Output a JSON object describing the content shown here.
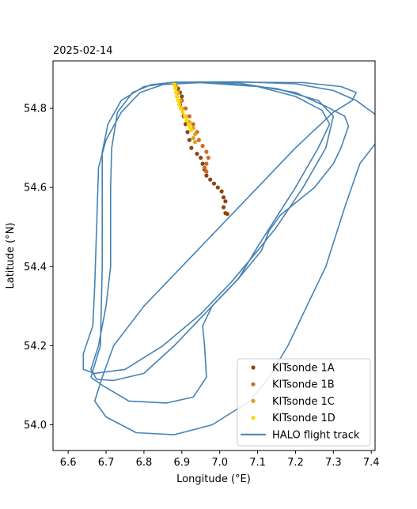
{
  "chart_data": {
    "type": "scatter",
    "title": "2025-02-14",
    "xlabel": "Longitude (°E)",
    "ylabel": "Latitude (°N)",
    "xlim": [
      6.56,
      7.41
    ],
    "ylim": [
      53.935,
      54.92
    ],
    "xticks": [
      6.6,
      6.7,
      6.8,
      6.9,
      7.0,
      7.1,
      7.2,
      7.3,
      7.4
    ],
    "xtick_labels": [
      "6.6",
      "6.7",
      "6.8",
      "6.9",
      "7.0",
      "7.1",
      "7.2",
      "7.3",
      "7.4"
    ],
    "yticks": [
      54.0,
      54.2,
      54.4,
      54.6,
      54.8
    ],
    "ytick_labels": [
      "54.0",
      "54.2",
      "54.4",
      "54.6",
      "54.8"
    ],
    "grid": false,
    "legend": "lower-right",
    "series": [
      {
        "name": "KITsonde 1A",
        "kind": "points",
        "color": "#8b4513",
        "points": [
          [
            6.88,
            54.86
          ],
          [
            6.89,
            54.85
          ],
          [
            6.895,
            54.84
          ],
          [
            6.9,
            54.83
          ],
          [
            6.9,
            54.82
          ],
          [
            6.895,
            54.81
          ],
          [
            6.9,
            54.8
          ],
          [
            6.905,
            54.78
          ],
          [
            6.91,
            54.76
          ],
          [
            6.915,
            54.74
          ],
          [
            6.92,
            54.72
          ],
          [
            6.925,
            54.7
          ],
          [
            6.94,
            54.685
          ],
          [
            6.95,
            54.675
          ],
          [
            6.955,
            54.66
          ],
          [
            6.96,
            54.645
          ],
          [
            6.965,
            54.63
          ],
          [
            6.975,
            54.62
          ],
          [
            6.985,
            54.61
          ],
          [
            6.995,
            54.6
          ],
          [
            7.005,
            54.59
          ],
          [
            7.01,
            54.575
          ],
          [
            7.015,
            54.565
          ],
          [
            7.01,
            54.55
          ],
          [
            7.015,
            54.535
          ],
          [
            7.02,
            54.533
          ]
        ]
      },
      {
        "name": "KITsonde 1B",
        "kind": "points",
        "color": "#d2691e",
        "points": [
          [
            6.885,
            54.855
          ],
          [
            6.89,
            54.84
          ],
          [
            6.9,
            54.82
          ],
          [
            6.91,
            54.8
          ],
          [
            6.92,
            54.78
          ],
          [
            6.93,
            54.76
          ],
          [
            6.94,
            54.74
          ],
          [
            6.945,
            54.72
          ],
          [
            6.955,
            54.705
          ],
          [
            6.965,
            54.69
          ],
          [
            6.97,
            54.675
          ],
          [
            6.965,
            54.66
          ],
          [
            6.96,
            54.65
          ],
          [
            6.965,
            54.64
          ]
        ]
      },
      {
        "name": "KITsonde 1C",
        "kind": "points",
        "color": "#daa520",
        "points": [
          [
            6.885,
            54.855
          ],
          [
            6.89,
            54.84
          ],
          [
            6.895,
            54.82
          ],
          [
            6.9,
            54.8
          ],
          [
            6.91,
            54.78
          ],
          [
            6.92,
            54.765
          ],
          [
            6.93,
            54.75
          ],
          [
            6.935,
            54.735
          ],
          [
            6.93,
            54.725
          ],
          [
            6.935,
            54.715
          ]
        ]
      },
      {
        "name": "KITsonde 1D",
        "kind": "points",
        "color": "#ffd700",
        "points": [
          [
            6.88,
            54.86
          ],
          [
            6.883,
            54.85
          ],
          [
            6.885,
            54.84
          ],
          [
            6.887,
            54.83
          ],
          [
            6.89,
            54.82
          ],
          [
            6.893,
            54.81
          ],
          [
            6.897,
            54.8
          ],
          [
            6.902,
            54.79
          ],
          [
            6.908,
            54.78
          ],
          [
            6.913,
            54.77
          ],
          [
            6.918,
            54.76
          ],
          [
            6.922,
            54.752
          ],
          [
            6.925,
            54.745
          ]
        ]
      },
      {
        "name": "HALO flight track",
        "kind": "line",
        "color": "#4682b4",
        "segments": [
          [
            [
              6.88,
              54.865
            ],
            [
              7.05,
              54.866
            ],
            [
              7.22,
              54.865
            ],
            [
              7.32,
              54.855
            ],
            [
              7.36,
              54.84
            ],
            [
              7.35,
              54.82
            ],
            [
              7.3,
              54.79
            ],
            [
              7.2,
              54.7
            ],
            [
              7.1,
              54.6
            ],
            [
              7.0,
              54.5
            ],
            [
              6.9,
              54.4
            ],
            [
              6.8,
              54.3
            ],
            [
              6.72,
              54.2
            ],
            [
              6.69,
              54.12
            ],
            [
              6.67,
              54.06
            ],
            [
              6.7,
              54.02
            ],
            [
              6.78,
              53.98
            ],
            [
              6.88,
              53.975
            ],
            [
              6.98,
              54.0
            ],
            [
              7.08,
              54.06
            ],
            [
              7.13,
              54.12
            ],
            [
              7.18,
              54.2
            ],
            [
              7.23,
              54.3
            ],
            [
              7.28,
              54.4
            ],
            [
              7.33,
              54.55
            ],
            [
              7.37,
              54.66
            ],
            [
              7.41,
              54.71
            ]
          ],
          [
            [
              7.41,
              54.785
            ],
            [
              7.36,
              54.82
            ],
            [
              7.3,
              54.845
            ],
            [
              7.2,
              54.862
            ],
            [
              7.05,
              54.867
            ],
            [
              6.88,
              54.866
            ],
            [
              6.82,
              54.86
            ],
            [
              6.77,
              54.84
            ],
            [
              6.73,
              54.79
            ],
            [
              6.715,
              54.7
            ],
            [
              6.712,
              54.6
            ],
            [
              6.712,
              54.4
            ],
            [
              6.7,
              54.3
            ],
            [
              6.68,
              54.2
            ],
            [
              6.66,
              54.14
            ],
            [
              6.675,
              54.115
            ],
            [
              6.72,
              54.112
            ],
            [
              6.8,
              54.13
            ],
            [
              6.88,
              54.2
            ],
            [
              6.96,
              54.28
            ],
            [
              7.05,
              54.37
            ],
            [
              7.11,
              54.44
            ],
            [
              7.13,
              54.49
            ],
            [
              7.16,
              54.53
            ],
            [
              7.25,
              54.6
            ],
            [
              7.3,
              54.66
            ],
            [
              7.32,
              54.7
            ],
            [
              7.34,
              54.755
            ],
            [
              7.33,
              54.78
            ],
            [
              7.28,
              54.805
            ],
            [
              7.2,
              54.84
            ],
            [
              7.05,
              54.864
            ],
            [
              6.88,
              54.866
            ],
            [
              6.8,
              54.855
            ],
            [
              6.74,
              54.82
            ],
            [
              6.705,
              54.76
            ],
            [
              6.69,
              54.69
            ],
            [
              6.69,
              54.6
            ],
            [
              6.69,
              54.4
            ],
            [
              6.685,
              54.2
            ],
            [
              6.66,
              54.12
            ]
          ],
          [
            [
              6.66,
              54.12
            ],
            [
              6.69,
              54.1
            ],
            [
              6.76,
              54.06
            ],
            [
              6.86,
              54.055
            ],
            [
              6.93,
              54.07
            ],
            [
              6.965,
              54.12
            ],
            [
              6.96,
              54.2
            ],
            [
              6.955,
              54.25
            ],
            [
              6.98,
              54.3
            ],
            [
              7.05,
              54.37
            ],
            [
              7.1,
              54.45
            ],
            [
              7.14,
              54.51
            ],
            [
              7.2,
              54.6
            ],
            [
              7.26,
              54.7
            ],
            [
              7.29,
              54.76
            ],
            [
              7.27,
              54.795
            ],
            [
              7.2,
              54.83
            ],
            [
              7.1,
              54.855
            ],
            [
              6.95,
              54.865
            ],
            [
              6.85,
              54.86
            ],
            [
              6.79,
              54.84
            ],
            [
              6.74,
              54.79
            ],
            [
              6.7,
              54.72
            ],
            [
              6.68,
              54.65
            ],
            [
              6.675,
              54.5
            ],
            [
              6.67,
              54.35
            ],
            [
              6.665,
              54.25
            ],
            [
              6.64,
              54.18
            ],
            [
              6.64,
              54.14
            ],
            [
              6.67,
              54.13
            ],
            [
              6.75,
              54.14
            ],
            [
              6.85,
              54.2
            ],
            [
              6.95,
              54.28
            ],
            [
              7.03,
              54.36
            ],
            [
              7.1,
              54.44
            ],
            [
              7.15,
              54.5
            ],
            [
              7.22,
              54.6
            ],
            [
              7.28,
              54.7
            ],
            [
              7.3,
              54.78
            ],
            [
              7.26,
              54.82
            ],
            [
              7.15,
              54.85
            ],
            [
              7.0,
              54.865
            ],
            [
              6.88,
              54.866
            ]
          ]
        ]
      }
    ]
  }
}
